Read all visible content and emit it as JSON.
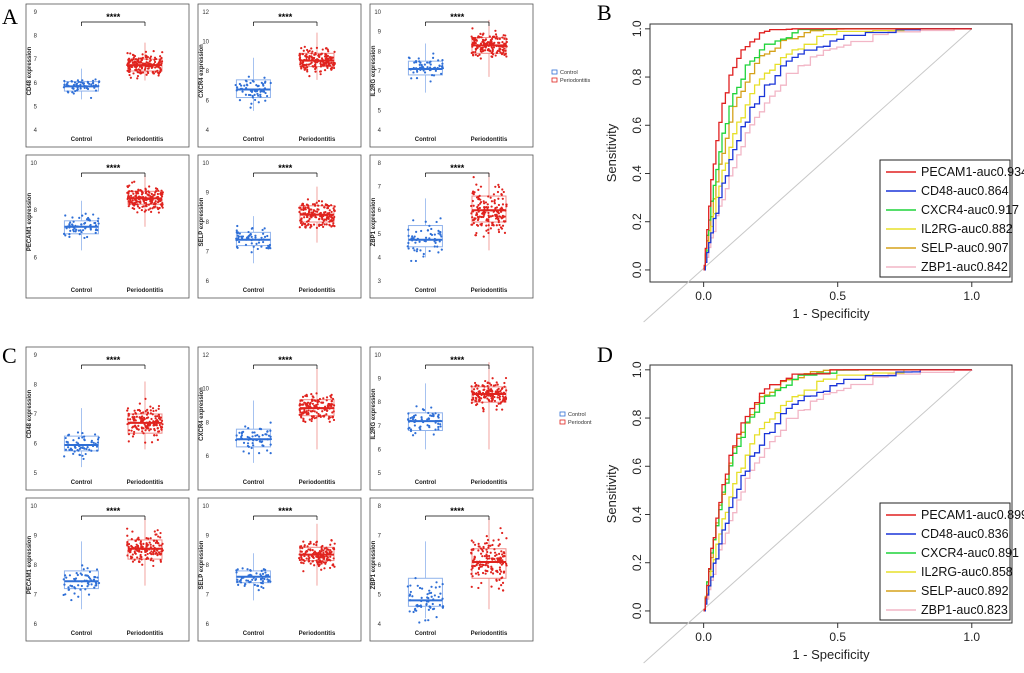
{
  "panel_labels": [
    "A",
    "B",
    "C",
    "D"
  ],
  "colors": {
    "control": "#2f6fd6",
    "control_box": "#8fb2ec",
    "periodontitis": "#e0231e",
    "periodontitis_box": "#f08b88"
  },
  "chart_data": [
    {
      "type": "box",
      "panel": "A",
      "legend": [
        "Control",
        "Periodontitis"
      ],
      "categories": [
        "Control",
        "Periodontitis"
      ],
      "significance": "****",
      "plots": [
        {
          "gene": "CD48",
          "ylabel": "CD48 expression",
          "ylim": [
            4,
            9
          ],
          "yticks": [
            4,
            5,
            6,
            7,
            8,
            9
          ],
          "control": {
            "q1": 5.65,
            "median": 5.85,
            "q3": 6.05,
            "lo": 5.3,
            "hi": 6.6,
            "n": 60,
            "spread": 0.35
          },
          "periodontitis": {
            "q1": 6.5,
            "median": 6.75,
            "q3": 7.0,
            "lo": 6.1,
            "hi": 7.7,
            "n": 170,
            "spread": 0.45
          }
        },
        {
          "gene": "CXCR4",
          "ylabel": "CXCR4 expression",
          "ylim": [
            4,
            12
          ],
          "yticks": [
            4,
            6,
            8,
            10,
            12
          ],
          "control": {
            "q1": 6.2,
            "median": 6.75,
            "q3": 7.4,
            "lo": 5.3,
            "hi": 8.9,
            "n": 60,
            "spread": 0.8
          },
          "periodontitis": {
            "q1": 8.3,
            "median": 8.7,
            "q3": 9.2,
            "lo": 7.4,
            "hi": 10.6,
            "n": 170,
            "spread": 0.75
          }
        },
        {
          "gene": "IL2RG",
          "ylabel": "IL2RG expression",
          "ylim": [
            4,
            10
          ],
          "yticks": [
            4,
            5,
            6,
            7,
            8,
            9,
            10
          ],
          "control": {
            "q1": 6.8,
            "median": 7.1,
            "q3": 7.5,
            "lo": 5.9,
            "hi": 8.4,
            "n": 60,
            "spread": 0.6
          },
          "periodontitis": {
            "q1": 7.9,
            "median": 8.3,
            "q3": 8.7,
            "lo": 6.7,
            "hi": 9.6,
            "n": 170,
            "spread": 0.6
          }
        },
        {
          "gene": "PECAM1",
          "ylabel": "PECAM1 expression",
          "ylim": [
            5,
            10
          ],
          "yticks": [
            6,
            8,
            10
          ],
          "control": {
            "q1": 7.0,
            "median": 7.3,
            "q3": 7.55,
            "lo": 6.3,
            "hi": 8.4,
            "n": 60,
            "spread": 0.45
          },
          "periodontitis": {
            "q1": 8.25,
            "median": 8.5,
            "q3": 8.8,
            "lo": 7.3,
            "hi": 9.5,
            "n": 170,
            "spread": 0.45
          }
        },
        {
          "gene": "SELP",
          "ylabel": "SELP expression",
          "ylim": [
            6,
            10
          ],
          "yticks": [
            6,
            7,
            8,
            9,
            10
          ],
          "control": {
            "q1": 7.2,
            "median": 7.4,
            "q3": 7.65,
            "lo": 6.6,
            "hi": 8.2,
            "n": 60,
            "spread": 0.4
          },
          "periodontitis": {
            "q1": 8.0,
            "median": 8.25,
            "q3": 8.55,
            "lo": 7.3,
            "hi": 9.2,
            "n": 170,
            "spread": 0.45
          }
        },
        {
          "gene": "ZBP1",
          "ylabel": "ZBP1 expression",
          "ylim": [
            3,
            8
          ],
          "yticks": [
            3,
            4,
            5,
            6,
            7,
            8
          ],
          "control": {
            "q1": 4.45,
            "median": 4.75,
            "q3": 5.35,
            "lo": 4.0,
            "hi": 6.5,
            "n": 60,
            "spread": 0.7
          },
          "periodontitis": {
            "q1": 5.5,
            "median": 6.0,
            "q3": 6.6,
            "lo": 4.3,
            "hi": 7.6,
            "n": 170,
            "spread": 0.9
          }
        }
      ]
    },
    {
      "type": "line",
      "panel": "B",
      "title": "",
      "xlabel": "1 - Specificity",
      "ylabel": "Sensitivity",
      "xlim": [
        -0.2,
        1.15
      ],
      "ylim": [
        -0.05,
        1.02
      ],
      "xticks": [
        "0.0",
        "0.5",
        "1.0"
      ],
      "yticks": [
        "0.0",
        "0.2",
        "0.4",
        "0.6",
        "0.8",
        "1.0"
      ],
      "series": [
        {
          "name": "PECAM1-auc0.934",
          "color": "#e02020",
          "k": 0.06
        },
        {
          "name": "CD48-auc0.864",
          "color": "#1a35d8",
          "k": 0.16
        },
        {
          "name": "CXCR4-auc0.917",
          "color": "#1fd43a",
          "k": 0.085
        },
        {
          "name": "IL2RG-auc0.882",
          "color": "#e7e02a",
          "k": 0.135
        },
        {
          "name": "SELP-auc0.907",
          "color": "#d5a21a",
          "k": 0.1
        },
        {
          "name": "ZBP1-auc0.842",
          "color": "#f2b6c6",
          "k": 0.19
        }
      ]
    },
    {
      "type": "box",
      "panel": "C",
      "legend": [
        "Control",
        "Periodont"
      ],
      "categories": [
        "Control",
        "Periodontitis"
      ],
      "significance": "****",
      "plots": [
        {
          "gene": "CD48",
          "ylabel": "CD48 expression",
          "ylim": [
            5,
            9
          ],
          "yticks": [
            5,
            6,
            7,
            8,
            9
          ],
          "control": {
            "q1": 5.75,
            "median": 5.95,
            "q3": 6.25,
            "lo": 5.2,
            "hi": 7.2,
            "n": 60,
            "spread": 0.45
          },
          "periodontitis": {
            "q1": 6.35,
            "median": 6.7,
            "q3": 7.0,
            "lo": 5.8,
            "hi": 8.1,
            "n": 150,
            "spread": 0.5
          }
        },
        {
          "gene": "CXCR4",
          "ylabel": "CXCR4 expression",
          "ylim": [
            5,
            12
          ],
          "yticks": [
            6,
            8,
            10,
            12
          ],
          "control": {
            "q1": 6.55,
            "median": 7.0,
            "q3": 7.6,
            "lo": 5.6,
            "hi": 9.3,
            "n": 60,
            "spread": 0.8
          },
          "periodontitis": {
            "q1": 8.4,
            "median": 8.85,
            "q3": 9.35,
            "lo": 6.4,
            "hi": 11.2,
            "n": 150,
            "spread": 0.8
          }
        },
        {
          "gene": "IL2RG",
          "ylabel": "IL2RG expression",
          "ylim": [
            5,
            10
          ],
          "yticks": [
            5,
            6,
            7,
            8,
            9,
            10
          ],
          "control": {
            "q1": 6.8,
            "median": 7.2,
            "q3": 7.55,
            "lo": 6.0,
            "hi": 8.8,
            "n": 60,
            "spread": 0.55
          },
          "periodontitis": {
            "q1": 8.0,
            "median": 8.35,
            "q3": 8.65,
            "lo": 6.0,
            "hi": 9.7,
            "n": 150,
            "spread": 0.55
          }
        },
        {
          "gene": "PECAM1",
          "ylabel": "PECAM1 expression",
          "ylim": [
            6,
            10
          ],
          "yticks": [
            6,
            7,
            8,
            9,
            10
          ],
          "control": {
            "q1": 7.2,
            "median": 7.45,
            "q3": 7.8,
            "lo": 6.5,
            "hi": 8.8,
            "n": 60,
            "spread": 0.5
          },
          "periodontitis": {
            "q1": 8.2,
            "median": 8.55,
            "q3": 8.85,
            "lo": 7.3,
            "hi": 9.6,
            "n": 150,
            "spread": 0.45
          }
        },
        {
          "gene": "SELP",
          "ylabel": "SELP expression",
          "ylim": [
            6,
            10
          ],
          "yticks": [
            6,
            7,
            8,
            9,
            10
          ],
          "control": {
            "q1": 7.4,
            "median": 7.6,
            "q3": 7.8,
            "lo": 6.8,
            "hi": 8.4,
            "n": 60,
            "spread": 0.35
          },
          "periodontitis": {
            "q1": 8.15,
            "median": 8.35,
            "q3": 8.6,
            "lo": 7.3,
            "hi": 9.4,
            "n": 150,
            "spread": 0.45
          }
        },
        {
          "gene": "ZBP1",
          "ylabel": "ZBP1 expression",
          "ylim": [
            4,
            8
          ],
          "yticks": [
            4,
            5,
            6,
            7,
            8
          ],
          "control": {
            "q1": 4.6,
            "median": 4.8,
            "q3": 5.55,
            "lo": 4.2,
            "hi": 6.8,
            "n": 60,
            "spread": 0.65
          },
          "periodontitis": {
            "q1": 5.55,
            "median": 6.1,
            "q3": 6.55,
            "lo": 4.5,
            "hi": 7.6,
            "n": 150,
            "spread": 0.8
          }
        }
      ]
    },
    {
      "type": "line",
      "panel": "D",
      "title": "",
      "xlabel": "1 - Specificity",
      "ylabel": "Sensitivity",
      "xlim": [
        -0.2,
        1.15
      ],
      "ylim": [
        -0.05,
        1.02
      ],
      "xticks": [
        "0.0",
        "0.5",
        "1.0"
      ],
      "yticks": [
        "0.0",
        "0.2",
        "0.4",
        "0.6",
        "0.8",
        "1.0"
      ],
      "series": [
        {
          "name": "PECAM1-auc0.899",
          "color": "#e02020",
          "k": 0.095
        },
        {
          "name": "CD48-auc0.836",
          "color": "#1a35d8",
          "k": 0.175
        },
        {
          "name": "CXCR4-auc0.891",
          "color": "#1fd43a",
          "k": 0.105
        },
        {
          "name": "IL2RG-auc0.858",
          "color": "#e7e02a",
          "k": 0.15
        },
        {
          "name": "SELP-auc0.892",
          "color": "#d5a21a",
          "k": 0.1
        },
        {
          "name": "ZBP1-auc0.823",
          "color": "#f2b6c6",
          "k": 0.2
        }
      ]
    }
  ]
}
